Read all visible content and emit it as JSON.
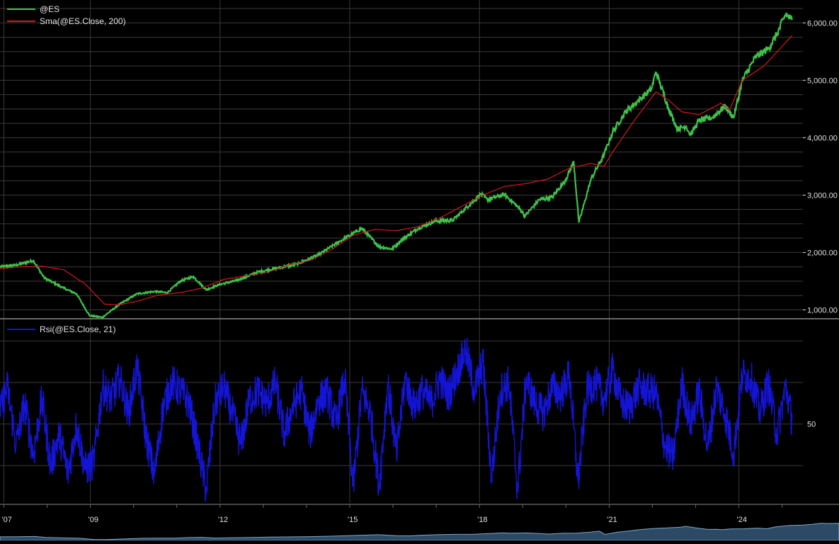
{
  "colors": {
    "background": "#000000",
    "grid": "#3a3a3a",
    "price": "#3fc24a",
    "sma": "#d21a1a",
    "rsi": "#1414d6",
    "divider": "#8a8a8a",
    "text": "#e0e0e0",
    "scroll_fill": "#2c4a66",
    "scroll_line": "#7fa6c8"
  },
  "chart_data": [
    {
      "type": "line",
      "panel": "price",
      "y_range": [
        870,
        6300
      ],
      "yticks": [
        1000,
        2000,
        3000,
        4000,
        5000,
        6000
      ],
      "ytick_labels": [
        "1,000.00",
        "2,000.00",
        "3,000.00",
        "4,000.00",
        "5,000.00",
        "6,000.00"
      ],
      "grid": true,
      "legend": "top-left",
      "series": [
        {
          "name": "@ES",
          "color": "#3fc24a",
          "x": [
            2006.83,
            2007.2,
            2007.6,
            2007.85,
            2008.3,
            2008.6,
            2008.9,
            2009.2,
            2009.6,
            2010.0,
            2010.4,
            2010.7,
            2011.0,
            2011.3,
            2011.6,
            2011.9,
            2012.3,
            2012.8,
            2013.2,
            2013.7,
            2014.2,
            2014.7,
            2015.2,
            2015.6,
            2015.9,
            2016.1,
            2016.5,
            2016.9,
            2017.3,
            2017.7,
            2017.95,
            2018.1,
            2018.5,
            2018.8,
            2018.98,
            2019.3,
            2019.6,
            2019.9,
            2020.1,
            2020.22,
            2020.5,
            2020.8,
            2021.0,
            2021.3,
            2021.6,
            2021.9,
            2022.0,
            2022.3,
            2022.5,
            2022.7,
            2022.8,
            2023.0,
            2023.3,
            2023.6,
            2023.8,
            2024.0,
            2024.3,
            2024.6,
            2024.8,
            2025.0,
            2025.15
          ],
          "values": [
            1750,
            1780,
            1860,
            1560,
            1380,
            1280,
            900,
            870,
            1100,
            1280,
            1320,
            1300,
            1500,
            1580,
            1350,
            1440,
            1510,
            1660,
            1720,
            1800,
            1960,
            2200,
            2420,
            2100,
            2060,
            2210,
            2420,
            2550,
            2560,
            2840,
            3020,
            2920,
            3010,
            2800,
            2640,
            2920,
            2960,
            3250,
            3580,
            2520,
            3280,
            3700,
            4100,
            4450,
            4650,
            4850,
            5150,
            4500,
            4150,
            4200,
            4050,
            4300,
            4350,
            4550,
            4350,
            5000,
            5400,
            5550,
            5800,
            6150,
            6050
          ]
        },
        {
          "name": "Sma(@ES.Close, 200)",
          "color": "#d21a1a",
          "x": [
            2006.83,
            2007.3,
            2007.8,
            2008.3,
            2008.8,
            2009.25,
            2009.6,
            2010.0,
            2010.5,
            2011.0,
            2011.5,
            2012.0,
            2012.5,
            2013.0,
            2013.5,
            2014.0,
            2014.5,
            2015.0,
            2015.5,
            2016.0,
            2016.5,
            2017.0,
            2017.5,
            2018.0,
            2018.5,
            2019.0,
            2019.5,
            2020.0,
            2020.5,
            2020.8,
            2021.0,
            2021.5,
            2022.0,
            2022.3,
            2022.6,
            2023.0,
            2023.5,
            2023.7,
            2024.0,
            2024.5,
            2025.15
          ],
          "values": [
            1720,
            1750,
            1760,
            1700,
            1450,
            1100,
            1090,
            1150,
            1260,
            1300,
            1380,
            1530,
            1590,
            1650,
            1780,
            1860,
            2050,
            2300,
            2400,
            2380,
            2450,
            2600,
            2800,
            3000,
            3150,
            3200,
            3280,
            3470,
            3550,
            3500,
            3750,
            4300,
            4800,
            4650,
            4450,
            4400,
            4600,
            4480,
            5000,
            5250,
            5780
          ]
        }
      ]
    },
    {
      "type": "line",
      "panel": "rsi",
      "y_range": [
        12,
        100
      ],
      "yticks": [
        50
      ],
      "ytick_labels": [
        "50"
      ],
      "grid": true,
      "legend": "top-left",
      "series": [
        {
          "name": "Rsi(@ES.Close, 21)",
          "color": "#1414d6",
          "x": [
            2006.83,
            2007.0,
            2007.2,
            2007.4,
            2007.6,
            2007.8,
            2008.0,
            2008.2,
            2008.4,
            2008.6,
            2008.8,
            2009.0,
            2009.2,
            2009.4,
            2009.6,
            2009.8,
            2010.0,
            2010.2,
            2010.4,
            2010.6,
            2010.8,
            2011.0,
            2011.2,
            2011.4,
            2011.6,
            2011.8,
            2012.0,
            2012.2,
            2012.4,
            2012.6,
            2012.8,
            2013.0,
            2013.2,
            2013.4,
            2013.6,
            2013.8,
            2014.0,
            2014.2,
            2014.4,
            2014.6,
            2014.8,
            2015.0,
            2015.2,
            2015.4,
            2015.6,
            2015.8,
            2016.0,
            2016.2,
            2016.4,
            2016.6,
            2016.8,
            2017.0,
            2017.2,
            2017.4,
            2017.6,
            2017.8,
            2018.0,
            2018.2,
            2018.4,
            2018.6,
            2018.8,
            2019.0,
            2019.2,
            2019.4,
            2019.6,
            2019.8,
            2020.0,
            2020.2,
            2020.4,
            2020.6,
            2020.8,
            2021.0,
            2021.2,
            2021.4,
            2021.6,
            2021.8,
            2022.0,
            2022.2,
            2022.4,
            2022.6,
            2022.8,
            2023.0,
            2023.2,
            2023.4,
            2023.6,
            2023.8,
            2024.0,
            2024.2,
            2024.4,
            2024.6,
            2024.8,
            2025.0,
            2025.15
          ],
          "values": [
            55,
            68,
            40,
            60,
            35,
            62,
            30,
            45,
            26,
            50,
            28,
            32,
            68,
            62,
            72,
            55,
            78,
            45,
            25,
            58,
            70,
            66,
            60,
            40,
            18,
            60,
            68,
            55,
            40,
            62,
            66,
            60,
            70,
            45,
            58,
            66,
            45,
            62,
            65,
            50,
            72,
            20,
            66,
            55,
            20,
            70,
            35,
            72,
            58,
            66,
            60,
            72,
            64,
            75,
            86,
            66,
            80,
            24,
            66,
            70,
            18,
            72,
            60,
            55,
            68,
            64,
            74,
            22,
            66,
            70,
            62,
            76,
            60,
            58,
            68,
            66,
            65,
            40,
            34,
            70,
            50,
            66,
            38,
            68,
            55,
            36,
            74,
            72,
            56,
            70,
            45,
            68,
            52
          ]
        }
      ]
    }
  ],
  "x_axis": {
    "range": [
      2006.83,
      2025.4
    ],
    "ticks": [
      2006.92,
      2008.92,
      2011.92,
      2014.92,
      2017.92,
      2020.92,
      2023.92
    ],
    "tick_labels": [
      "'07",
      "'09",
      "'12",
      "'15",
      "'18",
      "'21",
      "'24"
    ]
  }
}
